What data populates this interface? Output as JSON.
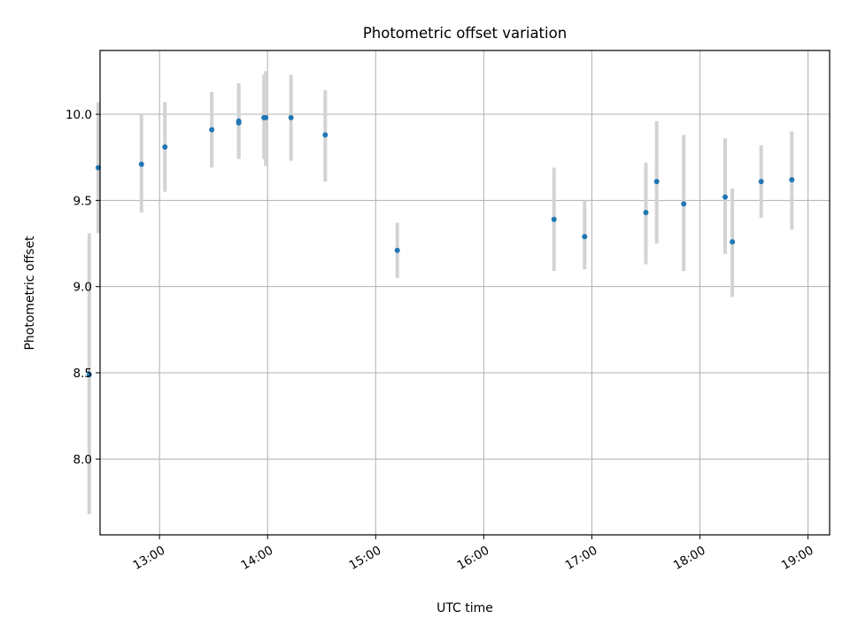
{
  "chart_data": {
    "type": "scatter",
    "title": "Photometric offset variation",
    "xlabel": "UTC time",
    "ylabel": "Photometric offset",
    "x_ticks": [
      "13:00",
      "14:00",
      "15:00",
      "16:00",
      "17:00",
      "18:00",
      "19:00"
    ],
    "y_ticks": [
      "8.0",
      "8.5",
      "9.0",
      "9.5",
      "10.0"
    ],
    "xlim": [
      "12:27",
      "19:12"
    ],
    "ylim": [
      7.56,
      10.37
    ],
    "grid": true,
    "colors": {
      "points": "#1f77b4",
      "errorbars": "#d3d3d3",
      "grid": "#b0b0b0"
    },
    "series": [
      {
        "x": [
          "12:21",
          "12:26",
          "12:50",
          "13:03",
          "13:29",
          "13:44",
          "13:44",
          "13:58",
          "13:59",
          "14:13",
          "14:32",
          "15:12",
          "16:39",
          "16:56",
          "17:30",
          "17:36",
          "17:51",
          "18:14",
          "18:18",
          "18:34",
          "18:51"
        ],
        "y": [
          8.49,
          9.69,
          9.71,
          9.81,
          9.91,
          9.95,
          9.96,
          9.98,
          9.98,
          9.98,
          9.88,
          9.21,
          9.39,
          9.29,
          9.43,
          9.61,
          9.48,
          9.52,
          9.26,
          9.61,
          9.62
        ],
        "err_low": [
          7.68,
          9.31,
          9.43,
          9.55,
          9.69,
          9.75,
          9.74,
          9.74,
          9.7,
          9.73,
          9.61,
          9.05,
          9.09,
          9.1,
          9.13,
          9.25,
          9.09,
          9.19,
          8.94,
          9.4,
          9.33
        ],
        "err_high": [
          9.31,
          10.07,
          10.0,
          10.07,
          10.13,
          10.15,
          10.18,
          10.23,
          10.25,
          10.23,
          10.14,
          9.37,
          9.69,
          9.5,
          9.72,
          9.96,
          9.88,
          9.86,
          9.57,
          9.82,
          9.9
        ]
      }
    ]
  }
}
